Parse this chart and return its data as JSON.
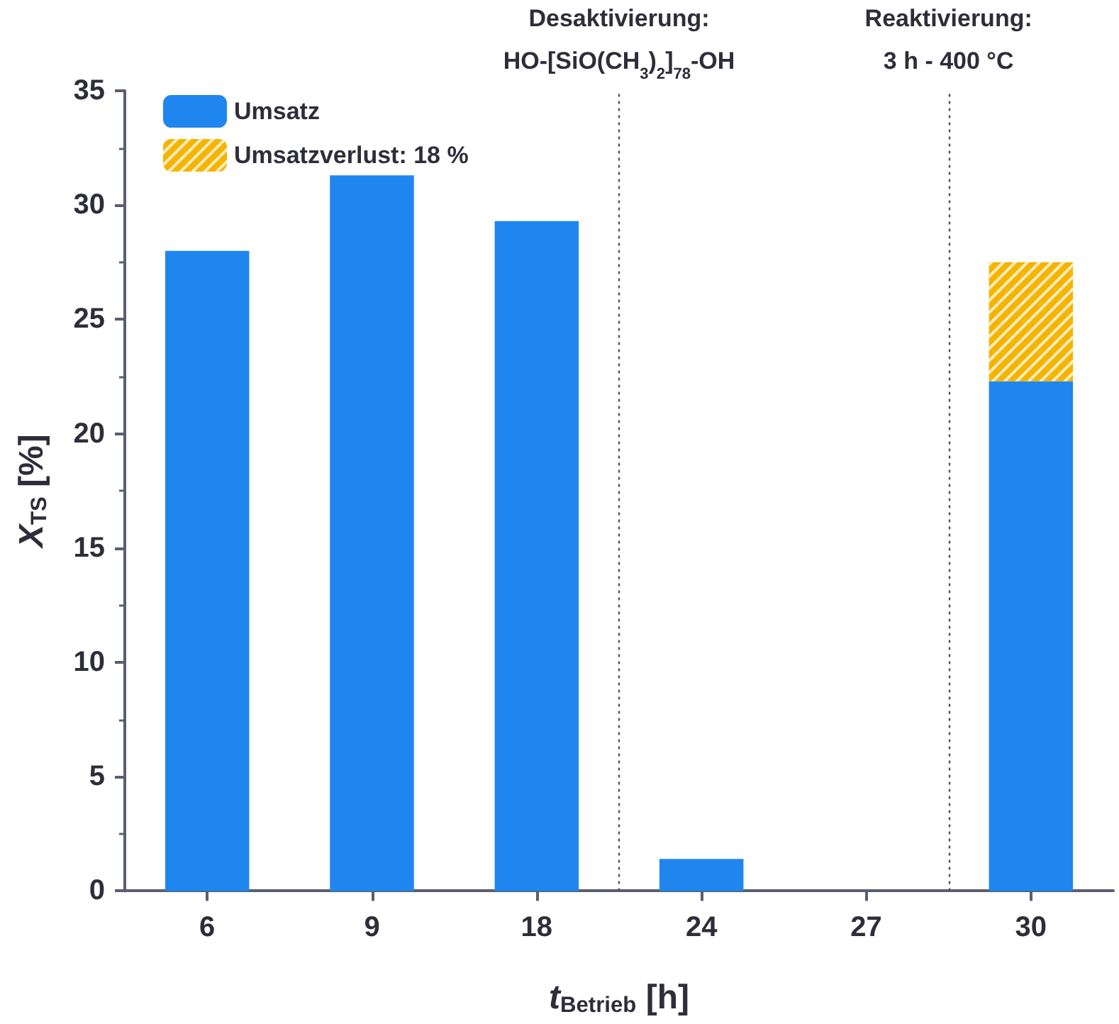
{
  "chart_data": {
    "type": "bar",
    "stacked": true,
    "xlabel": "t$_{Betrieb}$ [h]",
    "ylabel": "X$_{TS}$ [%]",
    "categories": [
      "6",
      "9",
      "18",
      "24",
      "27",
      "30"
    ],
    "series": [
      {
        "name": "Umsatz",
        "color": "#1f86f0",
        "values": [
          28.0,
          31.3,
          29.3,
          1.4,
          0,
          22.3
        ]
      },
      {
        "name": "Umsatzverlust: 18 %",
        "color": "#f5b400",
        "values": [
          null,
          null,
          null,
          null,
          null,
          5.2
        ]
      }
    ],
    "ylim": [
      0,
      35
    ],
    "yticks": [
      0,
      5,
      10,
      15,
      20,
      25,
      30,
      35
    ],
    "annotations": [
      "Desaktivierung:\nHO-[SiO(CH$_{3}$)$_{2}$]$_{78}$-OH",
      "Reaktivierung:\n3 h - 400 °C"
    ],
    "grid": false,
    "legend": "top left"
  }
}
